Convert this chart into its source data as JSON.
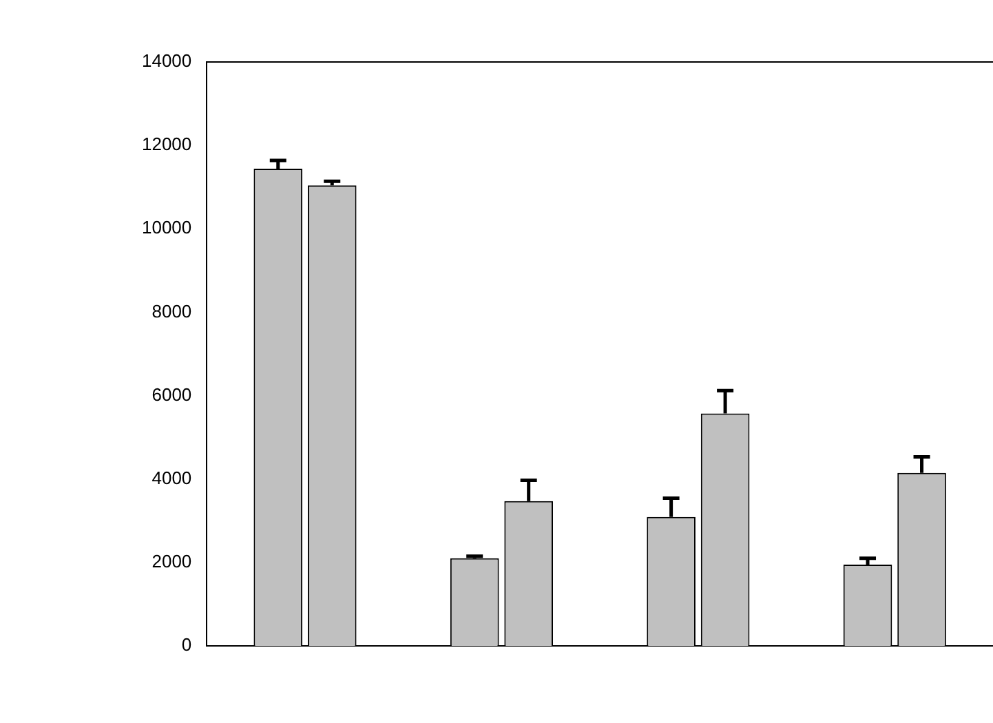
{
  "chart_data": {
    "type": "bar",
    "categories": [
      null,
      null,
      null,
      null
    ],
    "series": [
      {
        "color": "#c0c0c0",
        "values": [
          11440,
          2100,
          3090,
          1950
        ],
        "errors": [
          200,
          50,
          450,
          150
        ]
      },
      {
        "color": "#c0c0c0",
        "values": [
          11040,
          3470,
          5570,
          4150
        ],
        "errors": [
          100,
          500,
          550,
          380
        ]
      }
    ],
    "ylim": [
      0,
      14000
    ],
    "yticks": [
      0,
      2000,
      4000,
      6000,
      8000,
      10000,
      12000,
      14000
    ],
    "tick_labels": "y",
    "grid": false,
    "legend": false
  }
}
